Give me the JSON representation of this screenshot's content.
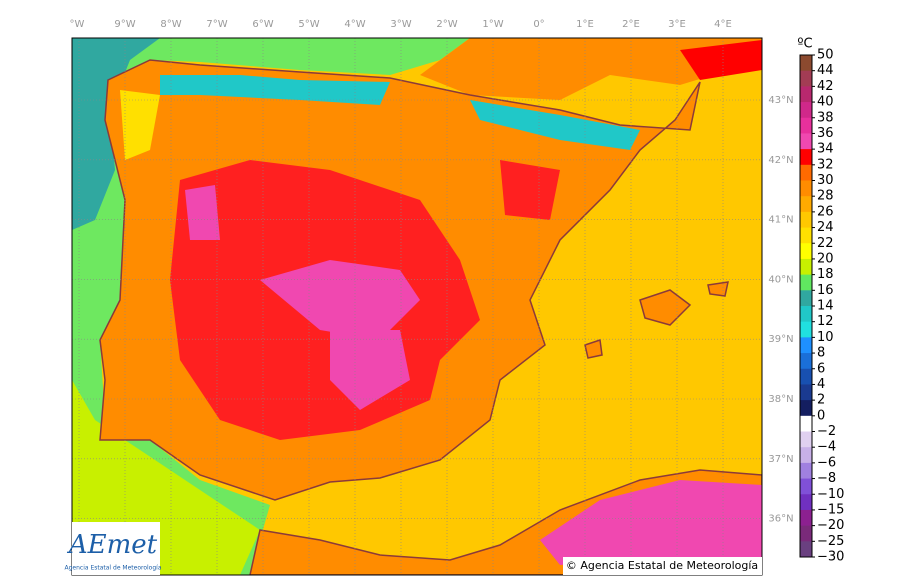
{
  "map": {
    "lon_labels": [
      "°W",
      "9°W",
      "8°W",
      "7°W",
      "6°W",
      "5°W",
      "4°W",
      "3°W",
      "2°W",
      "1°W",
      "0°",
      "1°E",
      "2°E",
      "3°E",
      "4°E"
    ],
    "lat_labels": [
      "43°N",
      "42°N",
      "41°N",
      "40°N",
      "39°N",
      "38°N",
      "37°N",
      "36°N"
    ]
  },
  "colorbar": {
    "unit": "ºC",
    "labels": [
      "50",
      "44",
      "42",
      "40",
      "38",
      "36",
      "34",
      "32",
      "30",
      "28",
      "26",
      "24",
      "22",
      "20",
      "18",
      "16",
      "14",
      "12",
      "10",
      "8",
      "6",
      "4",
      "2",
      "0",
      "−2",
      "−4",
      "−6",
      "−8",
      "−10",
      "−15",
      "−20",
      "−25",
      "−30"
    ],
    "colors": [
      "#8c4a2f",
      "#a33c54",
      "#b8286e",
      "#d0288a",
      "#e8309c",
      "#f048b0",
      "#ff0000",
      "#ff6a00",
      "#ff8c00",
      "#ffaa00",
      "#ffc800",
      "#ffe000",
      "#ffff00",
      "#c8f000",
      "#60e860",
      "#30a8a0",
      "#20c8c8",
      "#20e0e0",
      "#1e90ff",
      "#1a6fd8",
      "#1850b0",
      "#1a3a90",
      "#141e60",
      "#ffffff",
      "#e0d0f0",
      "#c8b0e8",
      "#a080e0",
      "#8050d8",
      "#7030c0",
      "#8c2090",
      "#7a2a7a",
      "#6a4080"
    ]
  },
  "logo": {
    "name": "AEmet",
    "subtitle": "Agencia Estatal de Meteorología"
  },
  "copyright": "© Agencia Estatal de Meteorología"
}
